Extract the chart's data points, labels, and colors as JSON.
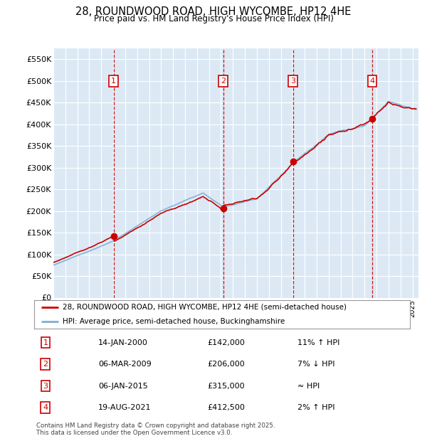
{
  "title": "28, ROUNDWOOD ROAD, HIGH WYCOMBE, HP12 4HE",
  "subtitle": "Price paid vs. HM Land Registry's House Price Index (HPI)",
  "ylim": [
    0,
    575000
  ],
  "xlim_start": 1995.0,
  "xlim_end": 2025.5,
  "plot_bg_color": "#dce9f5",
  "fig_bg_color": "#ffffff",
  "grid_color": "#ffffff",
  "sale_dates": [
    2000.04,
    2009.18,
    2015.02,
    2021.64
  ],
  "sale_prices": [
    142000,
    206000,
    315000,
    412500
  ],
  "sale_labels": [
    "1",
    "2",
    "3",
    "4"
  ],
  "legend_line1": "28, ROUNDWOOD ROAD, HIGH WYCOMBE, HP12 4HE (semi-detached house)",
  "legend_line2": "HPI: Average price, semi-detached house, Buckinghamshire",
  "table_rows": [
    [
      "1",
      "14-JAN-2000",
      "£142,000",
      "11% ↑ HPI"
    ],
    [
      "2",
      "06-MAR-2009",
      "£206,000",
      "7% ↓ HPI"
    ],
    [
      "3",
      "06-JAN-2015",
      "£315,000",
      "≈ HPI"
    ],
    [
      "4",
      "19-AUG-2021",
      "£412,500",
      "2% ↑ HPI"
    ]
  ],
  "footer": "Contains HM Land Registry data © Crown copyright and database right 2025.\nThis data is licensed under the Open Government Licence v3.0.",
  "red_color": "#cc0000",
  "blue_color": "#7bafd4"
}
